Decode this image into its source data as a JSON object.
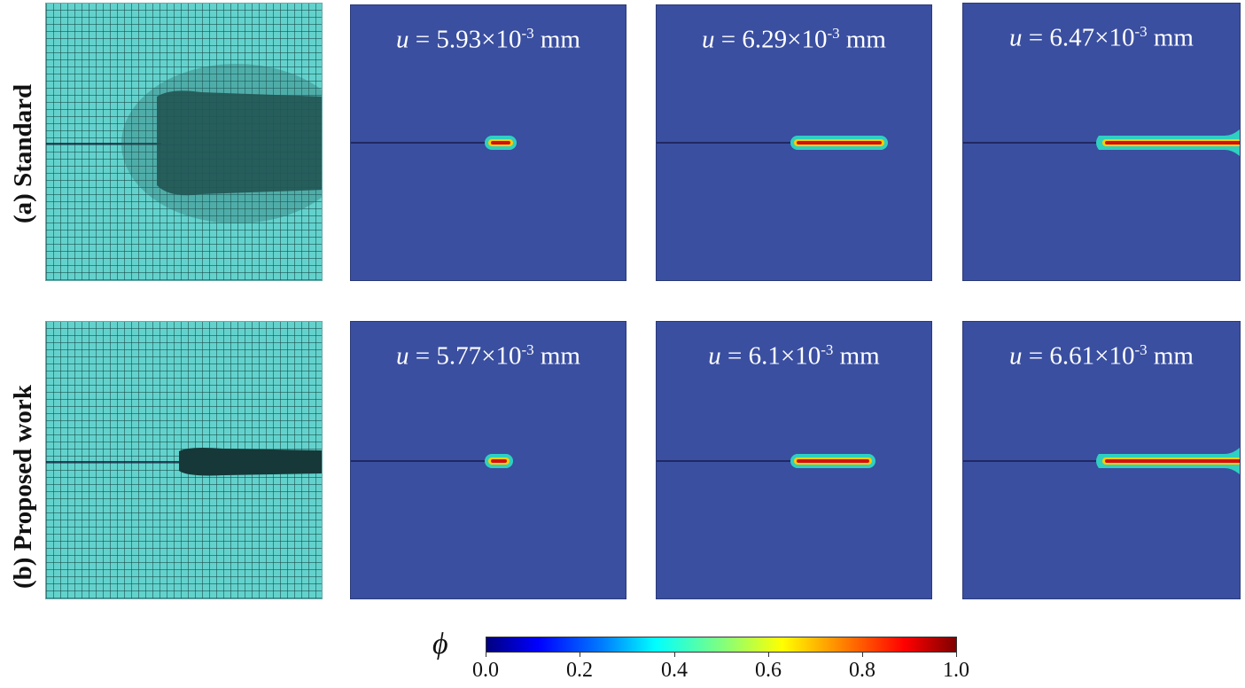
{
  "rows": [
    {
      "label": "(a) Standard",
      "snapshots": [
        {
          "u": "5.93",
          "exp": "-3",
          "unit": "mm"
        },
        {
          "u": "6.29",
          "exp": "-3",
          "unit": "mm"
        },
        {
          "u": "6.47",
          "exp": "-3",
          "unit": "mm"
        }
      ]
    },
    {
      "label": "(b) Proposed work",
      "snapshots": [
        {
          "u": "5.77",
          "exp": "-3",
          "unit": "mm"
        },
        {
          "u": "6.1",
          "exp": "-3",
          "unit": "mm"
        },
        {
          "u": "6.61",
          "exp": "-3",
          "unit": "mm"
        }
      ]
    }
  ],
  "colorbar": {
    "symbol": "ϕ",
    "ticks": [
      "0.0",
      "0.2",
      "0.4",
      "0.6",
      "0.8",
      "1.0"
    ]
  }
}
